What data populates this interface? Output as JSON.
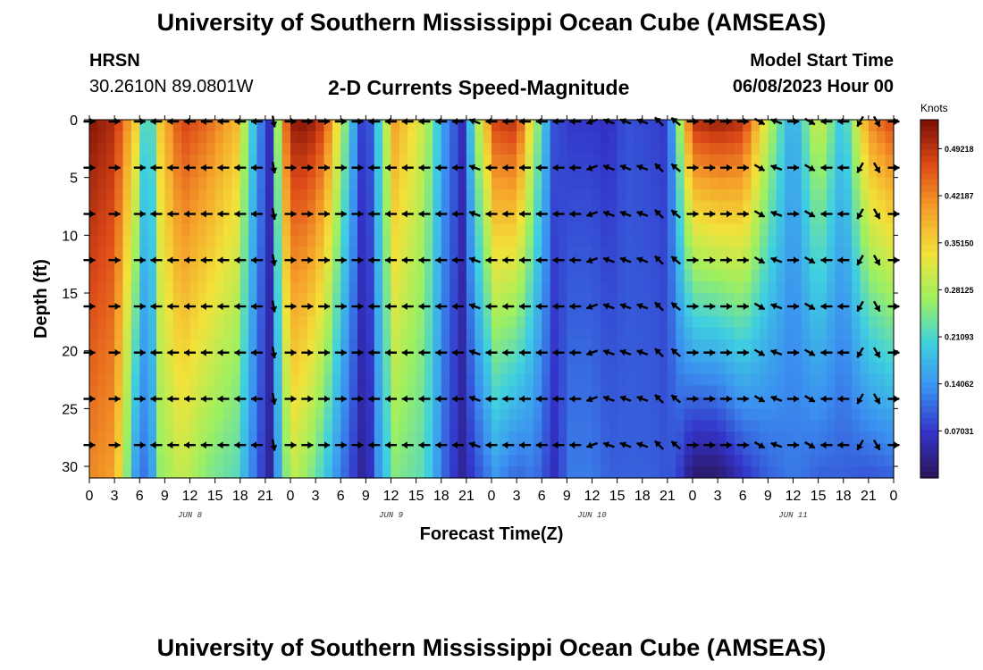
{
  "header": {
    "title": "University of Southern Mississippi Ocean Cube (AMSEAS)",
    "station": "HRSN",
    "coordinates": "30.2610N  89.0801W",
    "plot_name": "2-D Currents Speed-Magnitude",
    "model_start_label": "Model Start Time",
    "model_start_value": "06/08/2023 Hour 00"
  },
  "footer": {
    "title": "University of Southern Mississippi Ocean Cube (AMSEAS)"
  },
  "colors": {
    "colormap": [
      "#2b1457",
      "#3333c8",
      "#3b8ff0",
      "#3fd0e0",
      "#9ef060",
      "#f2e23a",
      "#f5a02a",
      "#dd4a18",
      "#7a0d05"
    ]
  },
  "chart_data": {
    "type": "heatmap",
    "title": "2-D Currents Speed-Magnitude",
    "xlabel": "Forecast Time(Z)",
    "ylabel": "Depth (ft)",
    "xlim": [
      0,
      96
    ],
    "ylim": [
      31,
      0
    ],
    "x_ticks": [
      0,
      3,
      6,
      9,
      12,
      15,
      18,
      21,
      24,
      27,
      30,
      33,
      36,
      39,
      42,
      45,
      48,
      51,
      54,
      57,
      60,
      63,
      66,
      69,
      72,
      75,
      78,
      81,
      84,
      87,
      90,
      93,
      96
    ],
    "x_tick_labels": [
      "0",
      "3",
      "6",
      "9",
      "12",
      "15",
      "18",
      "21",
      "0",
      "3",
      "6",
      "9",
      "12",
      "15",
      "18",
      "21",
      "0",
      "3",
      "6",
      "9",
      "12",
      "15",
      "18",
      "21",
      "0",
      "3",
      "6",
      "9",
      "12",
      "15",
      "18",
      "21",
      "0"
    ],
    "y_ticks": [
      0,
      5,
      10,
      15,
      20,
      25,
      30
    ],
    "y_tick_labels": [
      "0",
      "5",
      "10",
      "15",
      "20",
      "25",
      "30"
    ],
    "day_labels": [
      {
        "text": "JUN 8",
        "hour": 12
      },
      {
        "text": "JUN 9",
        "hour": 36
      },
      {
        "text": "JUN 10",
        "hour": 60
      },
      {
        "text": "JUN 11",
        "hour": 84
      }
    ],
    "colorbar": {
      "unit": "Knots",
      "range": [
        0,
        0.5355
      ],
      "ticks": [
        0.49218,
        0.42187,
        0.3515,
        0.28125,
        0.21093,
        0.14062,
        0.07031
      ],
      "tick_labels": [
        "0.49218",
        "0.42187",
        "0.35150",
        "0.28125",
        "0.21093",
        "0.14062",
        "0.07031"
      ]
    },
    "speed_profile": {
      "hours": [
        0,
        3,
        5.5,
        7,
        8.5,
        11,
        14,
        17.5,
        20,
        21.5,
        23,
        24,
        26,
        28,
        30,
        32,
        33,
        34.5,
        36.5,
        40,
        42.5,
        44.5,
        46,
        48.5,
        51,
        53,
        55.5,
        57.5,
        60,
        62,
        64,
        67,
        69,
        70,
        72,
        75,
        78,
        81,
        84,
        87,
        90,
        93,
        96
      ],
      "top": [
        0.53,
        0.5,
        0.36,
        0.15,
        0.36,
        0.48,
        0.45,
        0.38,
        0.15,
        0.06,
        0.38,
        0.52,
        0.53,
        0.48,
        0.3,
        0.12,
        0.04,
        0.2,
        0.4,
        0.3,
        0.14,
        0.06,
        0.25,
        0.48,
        0.5,
        0.3,
        0.09,
        0.07,
        0.07,
        0.06,
        0.09,
        0.08,
        0.07,
        0.2,
        0.5,
        0.52,
        0.5,
        0.3,
        0.15,
        0.32,
        0.18,
        0.42,
        0.48
      ],
      "bottom": [
        0.42,
        0.4,
        0.15,
        0.1,
        0.26,
        0.3,
        0.25,
        0.22,
        0.1,
        0.04,
        0.2,
        0.3,
        0.26,
        0.2,
        0.12,
        0.06,
        0.02,
        0.14,
        0.25,
        0.22,
        0.1,
        0.04,
        0.08,
        0.14,
        0.1,
        0.12,
        0.06,
        0.12,
        0.12,
        0.1,
        0.1,
        0.1,
        0.09,
        0.09,
        0.01,
        0.01,
        0.06,
        0.1,
        0.12,
        0.1,
        0.1,
        0.09,
        0.1
      ]
    },
    "vector_depths_ft": [
      0,
      4,
      8,
      12,
      16,
      20,
      24,
      28
    ],
    "vector_hours": [
      0,
      3,
      6,
      8,
      10,
      12,
      14,
      16,
      18,
      20,
      22,
      24,
      26,
      28,
      30,
      32,
      34,
      36,
      38,
      40,
      42,
      44,
      46,
      48,
      50,
      52,
      54,
      56,
      58,
      60,
      62,
      64,
      66,
      68,
      70,
      72,
      74,
      76,
      78,
      80,
      82,
      84,
      86,
      88,
      90,
      92,
      94,
      96
    ],
    "vector_direction_by_hour": {
      "hours": [
        0,
        6,
        8,
        10,
        20,
        21,
        22,
        24,
        32,
        33,
        34,
        36,
        44,
        45,
        46,
        48,
        58,
        60,
        62,
        66,
        68,
        70,
        72,
        74,
        78,
        80,
        82,
        84,
        86,
        88,
        90,
        96
      ],
      "angles": [
        0,
        0,
        180,
        180,
        180,
        100,
        80,
        0,
        0,
        80,
        180,
        180,
        180,
        -70,
        200,
        180,
        180,
        160,
        200,
        200,
        225,
        220,
        0,
        0,
        0,
        30,
        200,
        0,
        30,
        180,
        180,
        0
      ]
    }
  }
}
